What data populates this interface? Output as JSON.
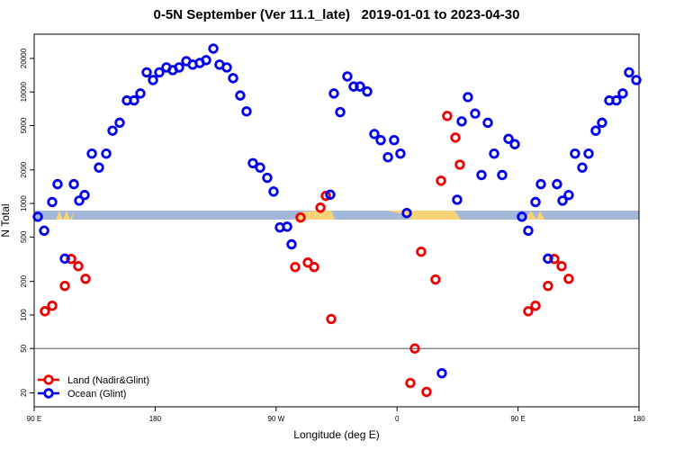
{
  "chart_data": {
    "type": "scatter",
    "title": "0-5N September (Ver 11.1_late)   2019-01-01 to 2023-04-30",
    "x_label": "Longitude (deg E)",
    "y_label": "N Total",
    "log_y": true,
    "xlim": [
      90,
      540
    ],
    "xticks": [
      {
        "value": 90,
        "label": "90 E"
      },
      180,
      {
        "value": 270,
        "label": "90 W"
      },
      {
        "value": 360,
        "label": "0"
      },
      {
        "value": 450,
        "label": "90 E"
      },
      {
        "value": 540,
        "label": "180"
      }
    ],
    "ylim": [
      15,
      33000
    ],
    "yticks": [
      20,
      50,
      100,
      200,
      500,
      1000,
      2000,
      5000,
      10000,
      20000
    ],
    "hline": 50,
    "legend": "lower left",
    "series": [
      {
        "name": "Land (Nadir&Glint)",
        "color": "#ee0000",
        "x": [
          98.0,
          103.4,
          112.8,
          117.5,
          122.8,
          128.2,
          284.2,
          288.2,
          293.6,
          298.3,
          303.0,
          307.0,
          311.0,
          369.9,
          373.2,
          377.9,
          381.9,
          388.6,
          392.7,
          397.3,
          403.4,
          406.7,
          457.6,
          463.0,
          472.3,
          477.0,
          482.4,
          487.7
        ],
        "values": [
          108,
          121,
          182,
          318,
          274,
          211,
          269,
          748,
          295,
          269,
          917,
          1170,
          92,
          24.5,
          50,
          369,
          20.4,
          208,
          1600,
          6100,
          3900,
          2230,
          108,
          121,
          182,
          318,
          274,
          211
        ]
      },
      {
        "name": "Ocean (Glint)",
        "color": "#0000ee",
        "x": [
          92.7,
          97.4,
          103.4,
          107.4,
          112.8,
          119.5,
          123.5,
          127.5,
          132.9,
          138.2,
          143.6,
          148.3,
          153.6,
          159.0,
          164.3,
          169.0,
          173.7,
          178.4,
          183.1,
          188.4,
          193.1,
          197.8,
          203.2,
          207.9,
          213.2,
          217.9,
          223.3,
          227.9,
          233.3,
          238.0,
          243.3,
          248.0,
          252.7,
          258.1,
          263.4,
          268.1,
          272.8,
          278.2,
          281.5,
          310.3,
          313.0,
          317.7,
          323.0,
          327.7,
          332.4,
          337.8,
          343.1,
          347.8,
          353.2,
          357.8,
          362.5,
          367.2,
          393.3,
          404.7,
          408.1,
          412.7,
          418.1,
          422.8,
          427.5,
          432.2,
          438.2,
          442.9,
          447.6,
          452.9,
          457.6,
          463.0,
          467.0,
          472.3,
          479.0,
          483.1,
          487.7,
          492.4,
          497.8,
          502.5,
          507.8,
          512.5,
          517.9,
          523.2,
          527.9,
          532.6,
          538.0
        ],
        "values": [
          760,
          570,
          1030,
          1490,
          320,
          1490,
          1060,
          1190,
          2800,
          2100,
          2800,
          4500,
          5300,
          8400,
          8400,
          9700,
          15000,
          12800,
          15000,
          16600,
          15700,
          16600,
          18900,
          17600,
          18200,
          19300,
          24500,
          17600,
          16600,
          13300,
          9300,
          6700,
          2300,
          2100,
          1700,
          1280,
          610,
          620,
          430,
          1200,
          9700,
          6600,
          13800,
          11200,
          11200,
          10100,
          4200,
          3700,
          2600,
          3700,
          2800,
          820,
          30,
          1080,
          5450,
          9000,
          6400,
          1800,
          5300,
          2800,
          1800,
          3800,
          3400,
          760,
          570,
          1030,
          1490,
          320,
          1490,
          1060,
          1190,
          2800,
          2100,
          2800,
          4500,
          5300,
          8400,
          8400,
          9700,
          15000,
          12800
        ]
      }
    ]
  }
}
